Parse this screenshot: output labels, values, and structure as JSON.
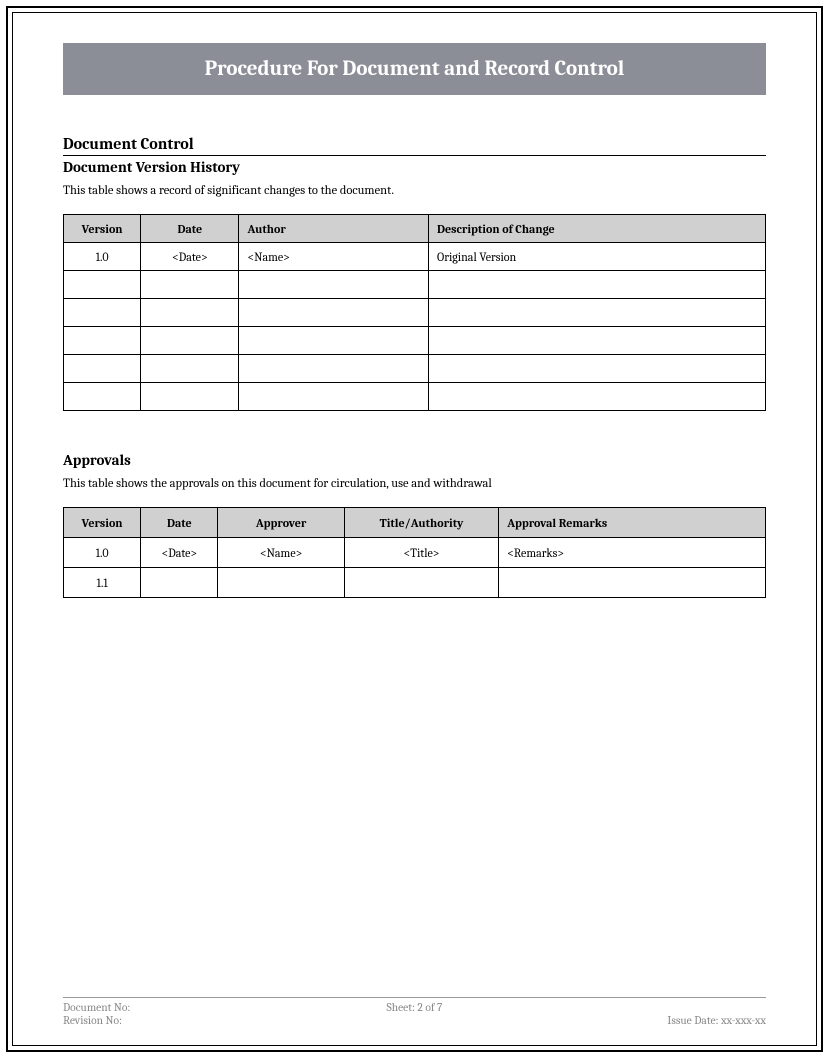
{
  "title": "Procedure For Document and Record Control",
  "section1": {
    "heading": "Document Control",
    "subheading": "Document Version History",
    "intro": "This table shows a record of significant changes to the document.",
    "columns": [
      "Version",
      "Date",
      "Author",
      "Description of Change"
    ],
    "rows": [
      [
        "1.0",
        "<Date>",
        "<Name>",
        "Original Version"
      ],
      [
        "",
        "",
        "",
        ""
      ],
      [
        "",
        "",
        "",
        ""
      ],
      [
        "",
        "",
        "",
        ""
      ],
      [
        "",
        "",
        "",
        ""
      ],
      [
        "",
        "",
        "",
        ""
      ]
    ]
  },
  "section2": {
    "subheading": "Approvals",
    "intro": "This table shows the approvals on this document for circulation, use and withdrawal",
    "columns": [
      "Version",
      "Date",
      "Approver",
      "Title/Authority",
      "Approval Remarks"
    ],
    "rows": [
      [
        "1.0",
        "<Date>",
        "<Name>",
        "<Title>",
        "<Remarks>"
      ],
      [
        "1.1",
        "",
        "",
        "",
        ""
      ]
    ]
  },
  "footer": {
    "doc_no_label": "Document No:",
    "revision_no_label": "Revision No:",
    "sheet": "Sheet: 2 of 7",
    "issue_date": "Issue Date: xx-xxx-xx"
  },
  "styles": {
    "banner_bg": "#8b8e97",
    "banner_fg": "#ffffff",
    "header_cell_bg": "#d0d0d0",
    "border_color": "#000000",
    "footer_color": "#888888",
    "page_bg": "#ffffff"
  }
}
